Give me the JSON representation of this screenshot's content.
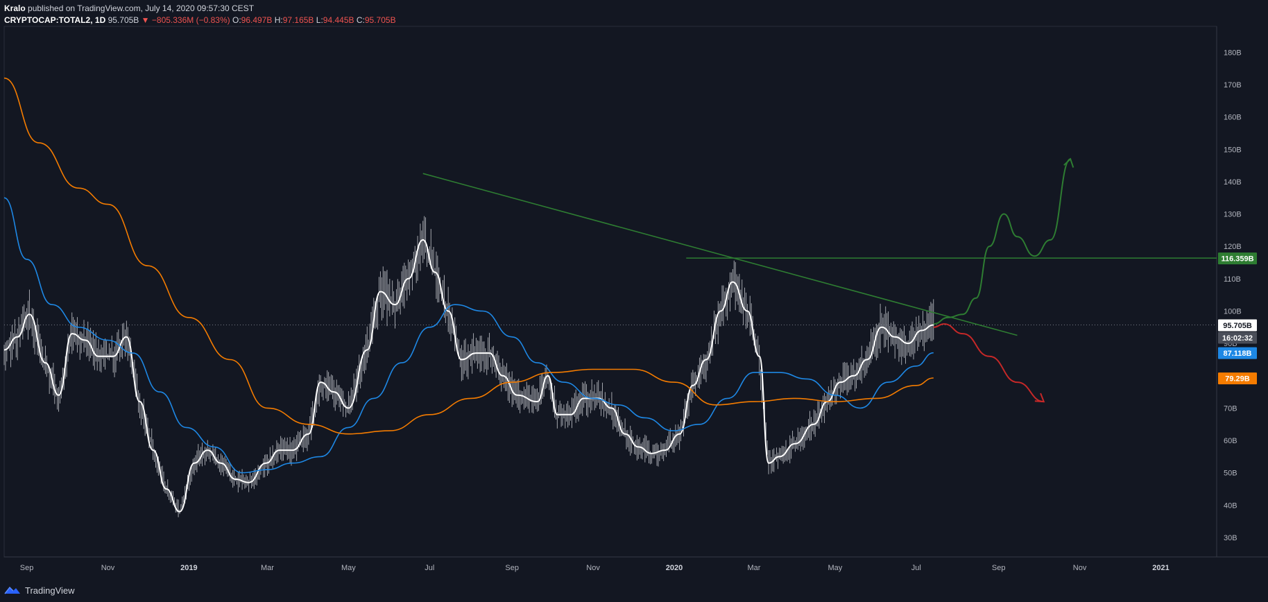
{
  "header": {
    "author": "Kralo",
    "published": "published on TradingView.com, July 14, 2020 09:57:30 CEST",
    "symbol": "CRYPTOCAP:TOTAL2, 1D",
    "last": "95.705B",
    "change": "−805.336M (−0.83%)",
    "open_label": "O:",
    "open": "96.497B",
    "high_label": "H:",
    "high": "97.165B",
    "low_label": "L:",
    "low": "94.445B",
    "close_label": "C:",
    "close": "95.705B"
  },
  "footer": {
    "brand": "TradingView"
  },
  "colors": {
    "background": "#131722",
    "price": "#ffffff",
    "ma_blue": "#1e88e5",
    "ma_orange": "#f57c00",
    "trendline": "#2e7d32",
    "bull_path": "#2e7d32",
    "bear_path": "#c62828"
  },
  "chart_data": {
    "type": "line",
    "y_unit": "billions USD",
    "ylim": [
      24,
      188
    ],
    "y_ticks": [
      "30B",
      "40B",
      "50B",
      "60B",
      "70B",
      "80B",
      "90B",
      "100B",
      "110B",
      "120B",
      "130B",
      "140B",
      "150B",
      "160B",
      "170B",
      "180B"
    ],
    "y_tick_values": [
      30,
      40,
      50,
      60,
      70,
      80,
      90,
      100,
      110,
      120,
      130,
      140,
      150,
      160,
      170,
      180
    ],
    "x_ticks": [
      {
        "label": "Sep",
        "date": "2018-09-01",
        "bold": false
      },
      {
        "label": "Nov",
        "date": "2018-11-01",
        "bold": false
      },
      {
        "label": "2019",
        "date": "2019-01-01",
        "bold": true
      },
      {
        "label": "Mar",
        "date": "2019-03-01",
        "bold": false
      },
      {
        "label": "May",
        "date": "2019-05-01",
        "bold": false
      },
      {
        "label": "Jul",
        "date": "2019-07-01",
        "bold": false
      },
      {
        "label": "Sep",
        "date": "2019-09-01",
        "bold": false
      },
      {
        "label": "Nov",
        "date": "2019-11-01",
        "bold": false
      },
      {
        "label": "2020",
        "date": "2020-01-01",
        "bold": true
      },
      {
        "label": "Mar",
        "date": "2020-03-01",
        "bold": false
      },
      {
        "label": "May",
        "date": "2020-05-01",
        "bold": false
      },
      {
        "label": "Jul",
        "date": "2020-07-01",
        "bold": false
      },
      {
        "label": "Sep",
        "date": "2020-09-01",
        "bold": false
      },
      {
        "label": "Nov",
        "date": "2020-11-01",
        "bold": false
      },
      {
        "label": "2021",
        "date": "2021-01-01",
        "bold": true
      }
    ],
    "xlim": [
      "2018-08-15",
      "2021-02-12"
    ],
    "series": [
      {
        "key": "price",
        "color": "#ffffff",
        "values": [
          [
            "2018-08-15",
            88
          ],
          [
            "2018-08-25",
            92
          ],
          [
            "2018-09-03",
            99
          ],
          [
            "2018-09-15",
            84
          ],
          [
            "2018-09-25",
            74
          ],
          [
            "2018-10-05",
            93
          ],
          [
            "2018-10-15",
            91
          ],
          [
            "2018-10-25",
            86
          ],
          [
            "2018-11-05",
            86
          ],
          [
            "2018-11-15",
            92
          ],
          [
            "2018-11-25",
            72
          ],
          [
            "2018-12-05",
            57
          ],
          [
            "2018-12-15",
            45
          ],
          [
            "2018-12-25",
            38
          ],
          [
            "2019-01-05",
            53
          ],
          [
            "2019-01-15",
            57
          ],
          [
            "2019-01-25",
            53
          ],
          [
            "2019-02-05",
            48
          ],
          [
            "2019-02-15",
            47
          ],
          [
            "2019-02-28",
            53
          ],
          [
            "2019-03-10",
            57
          ],
          [
            "2019-03-20",
            57
          ],
          [
            "2019-04-01",
            62
          ],
          [
            "2019-04-10",
            78
          ],
          [
            "2019-04-20",
            75
          ],
          [
            "2019-05-01",
            70
          ],
          [
            "2019-05-15",
            88
          ],
          [
            "2019-05-25",
            106
          ],
          [
            "2019-06-05",
            102
          ],
          [
            "2019-06-15",
            110
          ],
          [
            "2019-06-26",
            122
          ],
          [
            "2019-07-05",
            112
          ],
          [
            "2019-07-15",
            100
          ],
          [
            "2019-07-25",
            85
          ],
          [
            "2019-08-05",
            87
          ],
          [
            "2019-08-15",
            87
          ],
          [
            "2019-08-25",
            80
          ],
          [
            "2019-09-05",
            74
          ],
          [
            "2019-09-20",
            72
          ],
          [
            "2019-09-28",
            80
          ],
          [
            "2019-10-05",
            68
          ],
          [
            "2019-10-15",
            68
          ],
          [
            "2019-10-25",
            73
          ],
          [
            "2019-11-05",
            73
          ],
          [
            "2019-11-15",
            70
          ],
          [
            "2019-11-25",
            62
          ],
          [
            "2019-12-05",
            58
          ],
          [
            "2019-12-15",
            56
          ],
          [
            "2019-12-25",
            57
          ],
          [
            "2020-01-05",
            62
          ],
          [
            "2020-01-15",
            77
          ],
          [
            "2020-01-25",
            85
          ],
          [
            "2020-02-05",
            100
          ],
          [
            "2020-02-14",
            109
          ],
          [
            "2020-02-25",
            100
          ],
          [
            "2020-03-05",
            86
          ],
          [
            "2020-03-12",
            53
          ],
          [
            "2020-03-20",
            55
          ],
          [
            "2020-04-01",
            59
          ],
          [
            "2020-04-15",
            65
          ],
          [
            "2020-04-25",
            72
          ],
          [
            "2020-05-05",
            78
          ],
          [
            "2020-05-15",
            80
          ],
          [
            "2020-05-25",
            85
          ],
          [
            "2020-06-05",
            95
          ],
          [
            "2020-06-15",
            92
          ],
          [
            "2020-06-25",
            90
          ],
          [
            "2020-07-05",
            94
          ],
          [
            "2020-07-14",
            95.7
          ]
        ]
      },
      {
        "key": "ma_blue",
        "color": "#1e88e5",
        "values": [
          [
            "2018-08-15",
            135
          ],
          [
            "2018-09-01",
            116
          ],
          [
            "2018-09-20",
            102
          ],
          [
            "2018-10-10",
            95
          ],
          [
            "2018-11-01",
            91
          ],
          [
            "2018-11-20",
            87
          ],
          [
            "2018-12-10",
            75
          ],
          [
            "2018-12-30",
            64
          ],
          [
            "2019-01-20",
            58
          ],
          [
            "2019-02-10",
            50
          ],
          [
            "2019-03-01",
            51
          ],
          [
            "2019-03-20",
            53
          ],
          [
            "2019-04-10",
            55
          ],
          [
            "2019-05-01",
            64
          ],
          [
            "2019-05-20",
            73
          ],
          [
            "2019-06-10",
            84
          ],
          [
            "2019-07-01",
            95
          ],
          [
            "2019-07-20",
            102
          ],
          [
            "2019-08-10",
            100
          ],
          [
            "2019-09-01",
            92
          ],
          [
            "2019-09-20",
            84
          ],
          [
            "2019-10-10",
            78
          ],
          [
            "2019-11-01",
            73
          ],
          [
            "2019-11-20",
            71
          ],
          [
            "2019-12-10",
            67
          ],
          [
            "2019-12-31",
            63
          ],
          [
            "2020-01-20",
            65
          ],
          [
            "2020-02-10",
            73
          ],
          [
            "2020-03-01",
            81
          ],
          [
            "2020-03-20",
            81
          ],
          [
            "2020-04-10",
            79
          ],
          [
            "2020-05-01",
            74
          ],
          [
            "2020-05-20",
            70
          ],
          [
            "2020-06-10",
            78
          ],
          [
            "2020-07-01",
            83
          ],
          [
            "2020-07-14",
            87.1
          ]
        ]
      },
      {
        "key": "ma_orange",
        "color": "#f57c00",
        "values": [
          [
            "2018-08-15",
            172
          ],
          [
            "2018-09-10",
            152
          ],
          [
            "2018-10-10",
            138
          ],
          [
            "2018-11-01",
            133
          ],
          [
            "2018-12-01",
            114
          ],
          [
            "2019-01-01",
            98
          ],
          [
            "2019-02-01",
            85
          ],
          [
            "2019-03-01",
            70
          ],
          [
            "2019-04-01",
            65
          ],
          [
            "2019-05-01",
            62
          ],
          [
            "2019-06-01",
            63
          ],
          [
            "2019-07-01",
            68
          ],
          [
            "2019-08-01",
            73
          ],
          [
            "2019-09-01",
            78
          ],
          [
            "2019-10-01",
            81
          ],
          [
            "2019-11-01",
            82
          ],
          [
            "2019-12-01",
            82
          ],
          [
            "2020-01-01",
            78
          ],
          [
            "2020-02-01",
            71
          ],
          [
            "2020-03-01",
            72
          ],
          [
            "2020-04-01",
            73
          ],
          [
            "2020-05-01",
            72
          ],
          [
            "2020-06-01",
            73
          ],
          [
            "2020-07-01",
            77
          ],
          [
            "2020-07-14",
            79.3
          ]
        ]
      }
    ],
    "drawings": [
      {
        "key": "trendline",
        "color": "#2e7d32",
        "points": [
          [
            "2019-06-26",
            142.5
          ],
          [
            "2020-09-15",
            92.5
          ]
        ]
      },
      {
        "key": "resistance",
        "color": "#2e7d32",
        "value": 116.359,
        "from": "2020-01-10"
      },
      {
        "key": "bull_path",
        "color": "#2e7d32",
        "points": [
          [
            "2020-07-14",
            96
          ],
          [
            "2020-07-25",
            98
          ],
          [
            "2020-08-05",
            99
          ],
          [
            "2020-08-15",
            104
          ],
          [
            "2020-08-25",
            120
          ],
          [
            "2020-09-05",
            130
          ],
          [
            "2020-09-15",
            123
          ],
          [
            "2020-09-28",
            117
          ],
          [
            "2020-10-10",
            122
          ],
          [
            "2020-10-25",
            147
          ]
        ]
      },
      {
        "key": "bear_path",
        "color": "#c62828",
        "points": [
          [
            "2020-07-14",
            95
          ],
          [
            "2020-07-22",
            96
          ],
          [
            "2020-08-05",
            93
          ],
          [
            "2020-08-25",
            86
          ],
          [
            "2020-09-15",
            78
          ],
          [
            "2020-10-05",
            72
          ]
        ]
      }
    ],
    "current_price_line": 95.705,
    "labels": [
      {
        "text": "116.359B",
        "value": 116.359,
        "bg": "#2e7d32",
        "fg": "#ffffff"
      },
      {
        "text": "95.705B",
        "value": 95.705,
        "bg": "#ffffff",
        "fg": "#131722"
      },
      {
        "text": "16:02:32",
        "value": 92.0,
        "bg": "#4a4e59",
        "fg": "#ffffff"
      },
      {
        "text": "87.118B",
        "value": 87.118,
        "bg": "#1e88e5",
        "fg": "#ffffff"
      },
      {
        "text": "79.29B",
        "value": 79.29,
        "bg": "#f57c00",
        "fg": "#ffffff"
      }
    ]
  }
}
